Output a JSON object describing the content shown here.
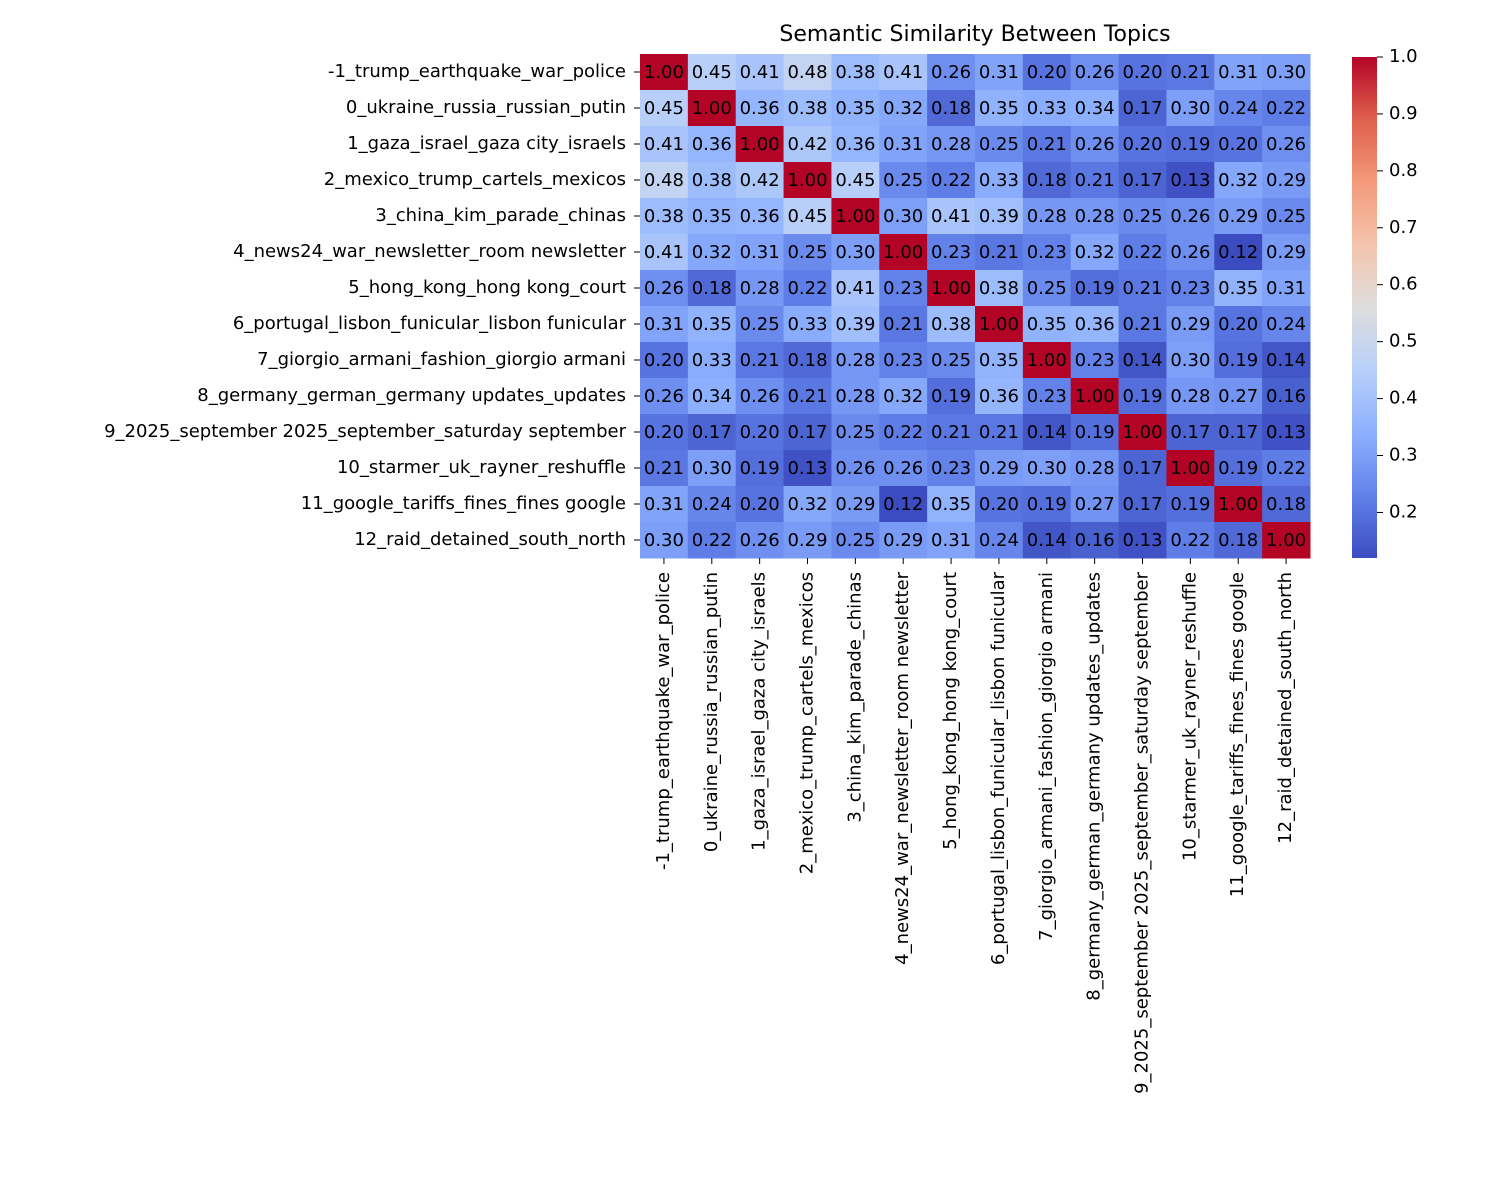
{
  "chart_data": {
    "type": "heatmap",
    "title": "Semantic Similarity Between Topics",
    "categories": [
      "-1_trump_earthquake_war_police",
      "0_ukraine_russia_russian_putin",
      "1_gaza_israel_gaza city_israels",
      "2_mexico_trump_cartels_mexicos",
      "3_china_kim_parade_chinas",
      "4_news24_war_newsletter_room newsletter",
      "5_hong_kong_hong kong_court",
      "6_portugal_lisbon_funicular_lisbon funicular",
      "7_giorgio_armani_fashion_giorgio armani",
      "8_germany_german_germany updates_updates",
      "9_2025_september 2025_september_saturday september",
      "10_starmer_uk_rayner_reshuffle",
      "11_google_tariffs_fines_fines google",
      "12_raid_detained_south_north"
    ],
    "values": [
      [
        1.0,
        0.45,
        0.41,
        0.48,
        0.38,
        0.41,
        0.26,
        0.31,
        0.2,
        0.26,
        0.2,
        0.21,
        0.31,
        0.3
      ],
      [
        0.45,
        1.0,
        0.36,
        0.38,
        0.35,
        0.32,
        0.18,
        0.35,
        0.33,
        0.34,
        0.17,
        0.3,
        0.24,
        0.22
      ],
      [
        0.41,
        0.36,
        1.0,
        0.42,
        0.36,
        0.31,
        0.28,
        0.25,
        0.21,
        0.26,
        0.2,
        0.19,
        0.2,
        0.26
      ],
      [
        0.48,
        0.38,
        0.42,
        1.0,
        0.45,
        0.25,
        0.22,
        0.33,
        0.18,
        0.21,
        0.17,
        0.13,
        0.32,
        0.29
      ],
      [
        0.38,
        0.35,
        0.36,
        0.45,
        1.0,
        0.3,
        0.41,
        0.39,
        0.28,
        0.28,
        0.25,
        0.26,
        0.29,
        0.25
      ],
      [
        0.41,
        0.32,
        0.31,
        0.25,
        0.3,
        1.0,
        0.23,
        0.21,
        0.23,
        0.32,
        0.22,
        0.26,
        0.12,
        0.29
      ],
      [
        0.26,
        0.18,
        0.28,
        0.22,
        0.41,
        0.23,
        1.0,
        0.38,
        0.25,
        0.19,
        0.21,
        0.23,
        0.35,
        0.31
      ],
      [
        0.31,
        0.35,
        0.25,
        0.33,
        0.39,
        0.21,
        0.38,
        1.0,
        0.35,
        0.36,
        0.21,
        0.29,
        0.2,
        0.24
      ],
      [
        0.2,
        0.33,
        0.21,
        0.18,
        0.28,
        0.23,
        0.25,
        0.35,
        1.0,
        0.23,
        0.14,
        0.3,
        0.19,
        0.14
      ],
      [
        0.26,
        0.34,
        0.26,
        0.21,
        0.28,
        0.32,
        0.19,
        0.36,
        0.23,
        1.0,
        0.19,
        0.28,
        0.27,
        0.16
      ],
      [
        0.2,
        0.17,
        0.2,
        0.17,
        0.25,
        0.22,
        0.21,
        0.21,
        0.14,
        0.19,
        1.0,
        0.17,
        0.17,
        0.13
      ],
      [
        0.21,
        0.3,
        0.19,
        0.13,
        0.26,
        0.26,
        0.23,
        0.29,
        0.3,
        0.28,
        0.17,
        1.0,
        0.19,
        0.22
      ],
      [
        0.31,
        0.24,
        0.2,
        0.32,
        0.29,
        0.12,
        0.35,
        0.2,
        0.19,
        0.27,
        0.17,
        0.19,
        1.0,
        0.18
      ],
      [
        0.3,
        0.22,
        0.26,
        0.29,
        0.25,
        0.29,
        0.31,
        0.24,
        0.14,
        0.16,
        0.13,
        0.22,
        0.18,
        1.0
      ]
    ],
    "value_labels": [
      [
        "1.00",
        "0.45",
        "0.41",
        "0.48",
        "0.38",
        "0.41",
        "0.26",
        "0.31",
        "0.20",
        "0.26",
        "0.20",
        "0.21",
        "0.31",
        "0.30"
      ],
      [
        "0.45",
        "1.00",
        "0.36",
        "0.38",
        "0.35",
        "0.32",
        "0.18",
        "0.35",
        "0.33",
        "0.34",
        "0.17",
        "0.30",
        "0.24",
        "0.22"
      ],
      [
        "0.41",
        "0.36",
        "1.00",
        "0.42",
        "0.36",
        "0.31",
        "0.28",
        "0.25",
        "0.21",
        "0.26",
        "0.20",
        "0.19",
        "0.20",
        "0.26"
      ],
      [
        "0.48",
        "0.38",
        "0.42",
        "1.00",
        "0.45",
        "0.25",
        "0.22",
        "0.33",
        "0.18",
        "0.21",
        "0.17",
        "0.13",
        "0.32",
        "0.29"
      ],
      [
        "0.38",
        "0.35",
        "0.36",
        "0.45",
        "1.00",
        "0.30",
        "0.41",
        "0.39",
        "0.28",
        "0.28",
        "0.25",
        "0.26",
        "0.29",
        "0.25"
      ],
      [
        "0.41",
        "0.32",
        "0.31",
        "0.25",
        "0.30",
        "1.00",
        "0.23",
        "0.21",
        "0.23",
        "0.32",
        "0.22",
        "0.26",
        "0.12",
        "0.29"
      ],
      [
        "0.26",
        "0.18",
        "0.28",
        "0.22",
        "0.41",
        "0.23",
        "1.00",
        "0.38",
        "0.25",
        "0.19",
        "0.21",
        "0.23",
        "0.35",
        "0.31"
      ],
      [
        "0.31",
        "0.35",
        "0.25",
        "0.33",
        "0.39",
        "0.21",
        "0.38",
        "1.00",
        "0.35",
        "0.36",
        "0.21",
        "0.29",
        "0.20",
        "0.24"
      ],
      [
        "0.20",
        "0.33",
        "0.21",
        "0.18",
        "0.28",
        "0.23",
        "0.25",
        "0.35",
        "1.00",
        "0.23",
        "0.14",
        "0.30",
        "0.19",
        "0.14"
      ],
      [
        "0.26",
        "0.34",
        "0.26",
        "0.21",
        "0.28",
        "0.32",
        "0.19",
        "0.36",
        "0.23",
        "1.00",
        "0.19",
        "0.28",
        "0.27",
        "0.16"
      ],
      [
        "0.20",
        "0.17",
        "0.20",
        "0.17",
        "0.25",
        "0.22",
        "0.21",
        "0.21",
        "0.14",
        "0.19",
        "1.00",
        "0.17",
        "0.17",
        "0.13"
      ],
      [
        "0.21",
        "0.30",
        "0.19",
        "0.13",
        "0.26",
        "0.26",
        "0.23",
        "0.29",
        "0.30",
        "0.28",
        "0.17",
        "1.00",
        "0.19",
        "0.22"
      ],
      [
        "0.31",
        "0.24",
        "0.20",
        "0.32",
        "0.29",
        "0.12",
        "0.35",
        "0.20",
        "0.19",
        "0.27",
        "0.17",
        "0.19",
        "1.00",
        "0.18"
      ],
      [
        "0.30",
        "0.22",
        "0.26",
        "0.29",
        "0.25",
        "0.29",
        "0.31",
        "0.24",
        "0.14",
        "0.16",
        "0.13",
        "0.22",
        "0.18",
        "1.00"
      ]
    ],
    "colormap": "coolwarm",
    "clim": [
      0.12,
      1
    ],
    "cticks": [
      0.2,
      0.3,
      0.4,
      0.5,
      0.6,
      0.7,
      0.8,
      0.9,
      {
        "value": 1,
        "label": "1.0"
      }
    ]
  }
}
